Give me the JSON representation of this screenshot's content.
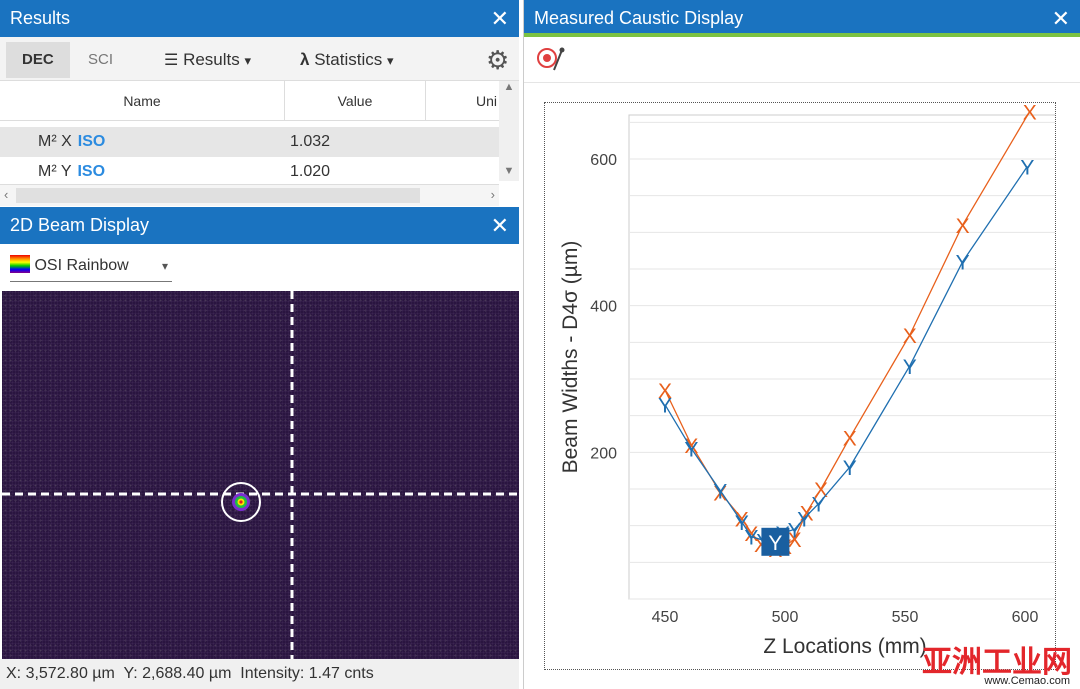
{
  "results": {
    "title": "Results",
    "tabs": {
      "dec": "DEC",
      "sci": "SCI"
    },
    "menus": {
      "results": "Results",
      "statistics": "Statistics"
    },
    "columns": [
      "Name",
      "Value",
      "Uni"
    ],
    "rows": [
      {
        "name": "M² X",
        "tag": "ISO",
        "value": "1.032"
      },
      {
        "name": "M² Y",
        "tag": "ISO",
        "value": "1.020"
      }
    ]
  },
  "beam": {
    "title": "2D Beam Display",
    "palette": "OSI Rainbow",
    "status": {
      "x": "X: 3,572.80 µm",
      "y": "Y: 2,688.40 µm",
      "intensity": "Intensity: 1.47 cnts"
    }
  },
  "caustic": {
    "title": "Measured Caustic Display",
    "watermark": "亚洲工业网",
    "watermark_sub": "www.Cemao.com"
  },
  "chart_data": {
    "type": "line",
    "xlabel": "Z Locations (mm)",
    "ylabel": "Beam Widths - D4σ (µm)",
    "xticks": [
      450,
      500,
      550,
      600
    ],
    "yticks": [
      200,
      400,
      600
    ],
    "xlim": [
      435,
      615
    ],
    "ylim": [
      0,
      660
    ],
    "series": [
      {
        "name": "X",
        "color": "#e8601c",
        "points": [
          [
            450,
            285
          ],
          [
            461,
            210
          ],
          [
            473,
            145
          ],
          [
            482,
            110
          ],
          [
            486,
            90
          ],
          [
            490,
            75
          ],
          [
            496,
            68
          ],
          [
            500,
            72
          ],
          [
            504,
            82
          ],
          [
            509,
            118
          ],
          [
            515,
            150
          ],
          [
            527,
            220
          ],
          [
            552,
            360
          ],
          [
            574,
            510
          ],
          [
            602,
            665
          ]
        ]
      },
      {
        "name": "Y",
        "color": "#1f6fb0",
        "points": [
          [
            450,
            265
          ],
          [
            461,
            205
          ],
          [
            473,
            148
          ],
          [
            482,
            105
          ],
          [
            486,
            85
          ],
          [
            491,
            80
          ],
          [
            496,
            78
          ],
          [
            499,
            90
          ],
          [
            504,
            95
          ],
          [
            508,
            110
          ],
          [
            514,
            130
          ],
          [
            527,
            180
          ],
          [
            552,
            318
          ],
          [
            574,
            460
          ],
          [
            601,
            590
          ]
        ]
      }
    ]
  }
}
